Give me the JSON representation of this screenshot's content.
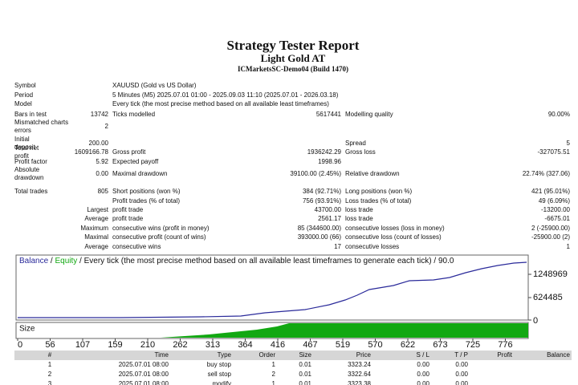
{
  "header": {
    "title": "Strategy Tester Report",
    "expert": "Light Gold AT",
    "server": "ICMarketsSC-Demo04 (Build 1470)"
  },
  "summary": [
    {
      "label": "Symbol",
      "text": "XAUUSD (Gold vs US Dollar)"
    },
    {
      "label": "Period",
      "text": "5 Minutes (M5) 2025.07.01 01:00 - 2025.09.03 11:10 (2025.07.01 - 2026.03.18)"
    },
    {
      "label": "Model",
      "text": "Every tick (the most precise method based on all available least timeframes)"
    },
    {
      "label": "Bars in test",
      "value": "13742",
      "label2": "Ticks modelled",
      "value2": "5617441",
      "label3": "Modelling quality",
      "value3": "90.00%"
    },
    {
      "label": "Mismatched charts errors",
      "value": "2"
    },
    {
      "label": "Initial deposit",
      "value": "200.00",
      "label3": "Spread",
      "value3": "5"
    },
    {
      "label": "Total net profit",
      "value": "1609166.78",
      "label2": "Gross profit",
      "value2": "1936242.29",
      "label3": "Gross loss",
      "value3": "-327075.51"
    },
    {
      "label": "Profit factor",
      "value": "5.92",
      "label2": "Expected payoff",
      "value2": "1998.96"
    },
    {
      "label": "Absolute drawdown",
      "value": "0.00",
      "label2": "Maximal drawdown",
      "value2": "39100.00 (2.45%)",
      "label3": "Relative drawdown",
      "value3": "22.74% (327.06)"
    },
    {
      "label": "Total trades",
      "value": "805",
      "label2": "Short positions (won %)",
      "value2": "384 (92.71%)",
      "label3": "Long positions (won %)",
      "value3": "421 (95.01%)"
    },
    {
      "label2": "Profit trades (% of total)",
      "value2": "756 (93.91%)",
      "label3": "Loss trades (% of total)",
      "value3": "49 (6.09%)"
    },
    {
      "value": "Largest",
      "label2": "profit trade",
      "value2": "43700.00",
      "label3": "loss trade",
      "value3": "-13200.00"
    },
    {
      "value": "Average",
      "label2": "profit trade",
      "value2": "2561.17",
      "label3": "loss trade",
      "value3": "-6675.01"
    },
    {
      "value": "Maximum",
      "label2": "consecutive wins (profit in money)",
      "value2": "85 (344600.00)",
      "label3": "consecutive losses (loss in money)",
      "value3": "2 (-25900.00)"
    },
    {
      "value": "Maximal",
      "label2": "consecutive profit (count of wins)",
      "value2": "393000.00 (66)",
      "label3": "consecutive loss (count of losses)",
      "value3": "-25900.00 (2)"
    },
    {
      "value": "Average",
      "label2": "consecutive wins",
      "value2": "17",
      "label3": "consecutive losses",
      "value3": "1"
    }
  ],
  "graph": {
    "legend_balance": "Balance",
    "legend_equity": "Equity",
    "legend_rest": "Every tick (the most precise method based on all available least timeframes to generate each tick) / 90.0",
    "size_label": "Size",
    "y_labels": [
      "1248969",
      "624485",
      "0"
    ],
    "x_labels": [
      "0",
      "56",
      "107",
      "159",
      "210",
      "262",
      "313",
      "364",
      "416",
      "467",
      "519",
      "570",
      "622",
      "673",
      "725",
      "776"
    ]
  },
  "orders": {
    "columns": [
      "#",
      "Time",
      "Type",
      "Order",
      "Size",
      "Price",
      "S / L",
      "T / P",
      "Profit",
      "Balance"
    ],
    "rows": [
      [
        "1",
        "2025.07.01 08:00",
        "buy stop",
        "1",
        "0.01",
        "3323.24",
        "0.00",
        "0.00"
      ],
      [
        "2",
        "2025.07.01 08:00",
        "sell stop",
        "2",
        "0.01",
        "3322.64",
        "0.00",
        "0.00"
      ],
      [
        "3",
        "2025.07.01 08:00",
        "modify",
        "1",
        "0.01",
        "3323.38",
        "0.00",
        "0.00"
      ]
    ]
  }
}
